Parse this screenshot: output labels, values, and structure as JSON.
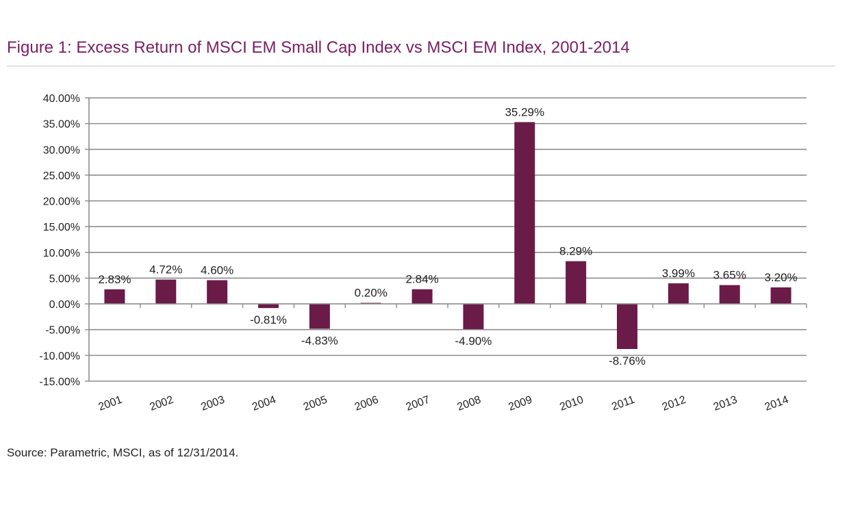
{
  "figure": {
    "title": "Figure 1: Excess Return of MSCI EM Small Cap Index vs MSCI EM Index, 2001-2014",
    "source": "Source: Parametric, MSCI, as of 12/31/2014."
  },
  "colors": {
    "bar": "#6a1b47",
    "title": "#7b1e63",
    "grid": "#8c8c8c",
    "text": "#222222"
  },
  "chart_data": {
    "type": "bar",
    "title": "Figure 1: Excess Return of MSCI EM Small Cap Index vs MSCI EM Index, 2001-2014",
    "xlabel": "",
    "ylabel": "",
    "categories": [
      "2001",
      "2002",
      "2003",
      "2004",
      "2005",
      "2006",
      "2007",
      "2008",
      "2009",
      "2010",
      "2011",
      "2012",
      "2013",
      "2014"
    ],
    "values": [
      2.83,
      4.72,
      4.6,
      -0.81,
      -4.83,
      0.2,
      2.84,
      -4.9,
      35.29,
      8.29,
      -8.76,
      3.99,
      3.65,
      3.2
    ],
    "value_labels": [
      "2.83%",
      "4.72%",
      "4.60%",
      "-0.81%",
      "-4.83%",
      "0.20%",
      "2.84%",
      "-4.90%",
      "35.29%",
      "8.29%",
      "-8.76%",
      "3.99%",
      "3.65%",
      "3.20%"
    ],
    "ylim": [
      -15,
      40
    ],
    "y_ticks": [
      40,
      35,
      30,
      25,
      20,
      15,
      10,
      5,
      0,
      -5,
      -10,
      -15
    ],
    "y_tick_labels": [
      "40.00%",
      "35.00%",
      "30.00%",
      "25.00%",
      "20.00%",
      "15.00%",
      "10.00%",
      "5.00%",
      "0.00%",
      "-5.00%",
      "-10.00%",
      "-15.00%"
    ],
    "grid": true,
    "legend": "none"
  }
}
